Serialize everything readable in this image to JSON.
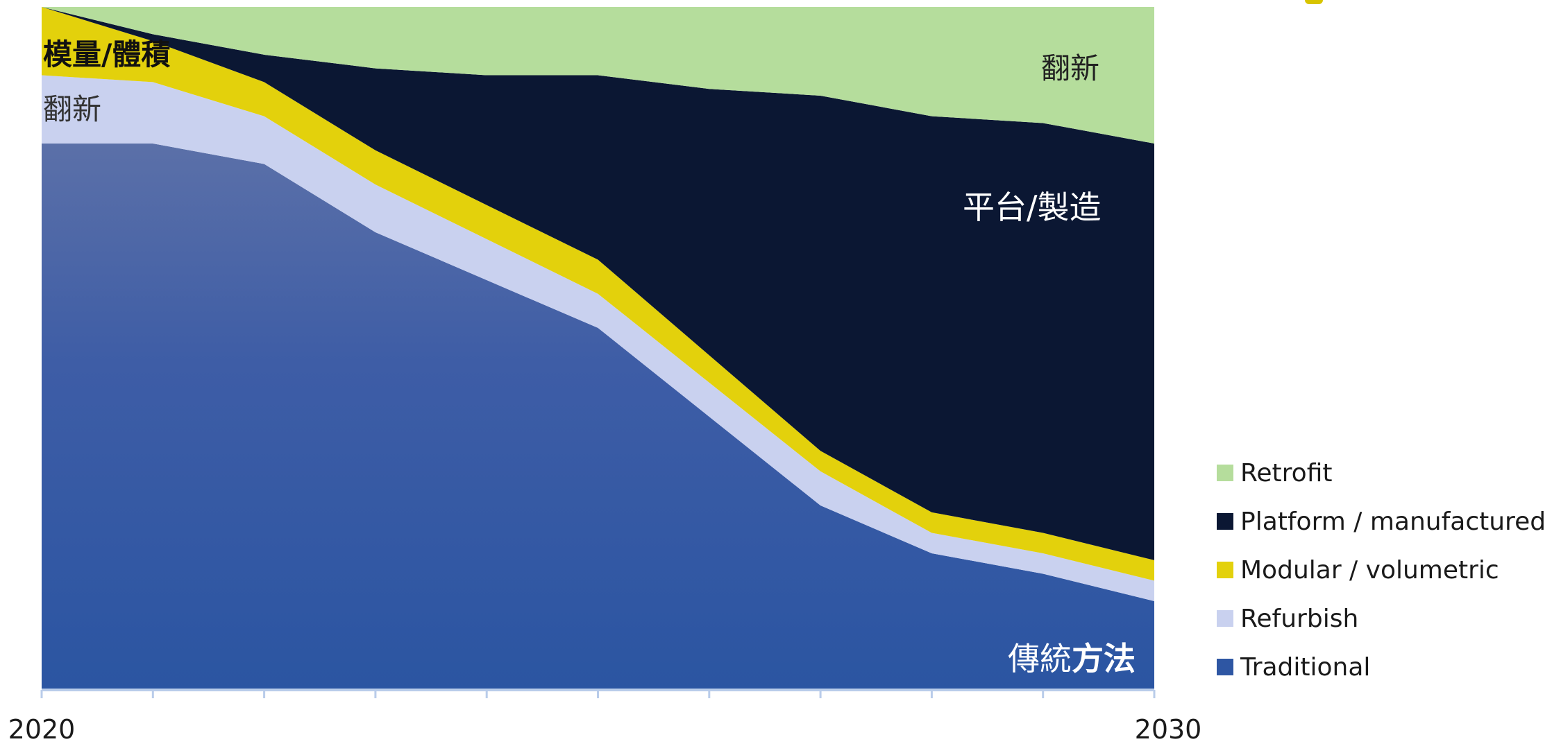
{
  "chart_data": {
    "type": "area",
    "stacked": true,
    "x": [
      2020,
      2021,
      2022,
      2023,
      2024,
      2025,
      2026,
      2027,
      2028,
      2029,
      2030
    ],
    "x_tick_labels": [
      "2020",
      "2030"
    ],
    "ylim": [
      0,
      100
    ],
    "grid": false,
    "legend_position": "right-bottom",
    "series": [
      {
        "name": "Traditional",
        "label": "Traditional",
        "color": "#2e56a3",
        "values": [
          80,
          80,
          77,
          67,
          60,
          53,
          40,
          27,
          20,
          17,
          13
        ]
      },
      {
        "name": "Refurbish",
        "label": "Refurbish",
        "color": "#c9d1ef",
        "values": [
          10,
          9,
          7,
          7,
          6,
          5,
          5,
          5,
          3,
          3,
          3
        ]
      },
      {
        "name": "Modular / volumetric",
        "label": "Modular / volumetric",
        "color": "#e3d10c",
        "values": [
          10,
          6,
          5,
          5,
          5,
          5,
          4,
          3,
          3,
          3,
          3
        ]
      },
      {
        "name": "Platform / manufactured",
        "label": "Platform / manufactured",
        "color": "#0b1733",
        "values": [
          0,
          1,
          4,
          12,
          19,
          27,
          39,
          52,
          58,
          60,
          61
        ]
      },
      {
        "name": "Retrofit",
        "label": "Retrofit",
        "color": "#b5dd9c",
        "values": [
          0,
          4,
          7,
          9,
          10,
          10,
          12,
          13,
          16,
          17,
          20
        ]
      }
    ],
    "annotations": [
      {
        "text": "模量/體積",
        "color": "#111111",
        "bold": true
      },
      {
        "text": "翻新",
        "color": "#333333",
        "bold": false
      },
      {
        "text": "翻新",
        "color": "#222222",
        "bold": false
      },
      {
        "text": "平台/製造",
        "color": "#ffffff",
        "bold": false
      },
      {
        "text": "傳統",
        "bold_text": "方法",
        "color": "#ffffff"
      }
    ]
  }
}
